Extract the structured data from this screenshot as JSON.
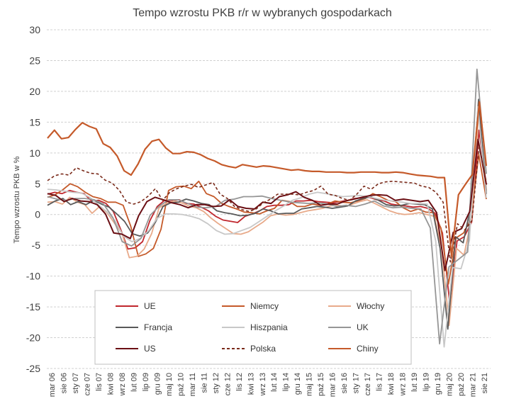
{
  "chart_data": {
    "type": "line",
    "title": "Tempo wzrostu PKB r/r w wybranych gospodarkach",
    "xlabel": "",
    "ylabel": "Tempo wzrostu PKB w %",
    "ylim": [
      -25,
      30
    ],
    "yticks": [
      "30",
      "25",
      "20",
      "15",
      "10",
      "5",
      "0",
      "-5",
      "-10",
      "-15",
      "-20",
      "-25"
    ],
    "grid": true,
    "legend_position": "bottom-center",
    "x_tick_labels": [
      "mar 06",
      "sie 06",
      "sty 07",
      "cze 07",
      "lis 07",
      "kwi 08",
      "wrz 08",
      "lut 09",
      "lip 09",
      "gru 09",
      "maj 10",
      "paź 10",
      "mar 11",
      "sie 11",
      "sty 12",
      "cze 12",
      "lis 12",
      "kwi 13",
      "wrz 13",
      "lut 14",
      "lip 14",
      "gru 14",
      "maj 15",
      "paź 15",
      "mar 16",
      "sie 16",
      "sty 17",
      "cze 17",
      "lis 17",
      "kwi 18",
      "wrz 18",
      "lut 19",
      "lip 19",
      "gru 19",
      "maj 20",
      "paź 20",
      "mar 21",
      "sie 21"
    ],
    "series": [
      {
        "name": "UE",
        "color": "#c0272d",
        "dash": false,
        "width": 1.8,
        "values": [
          3.3,
          3.6,
          3.4,
          3.9,
          3.6,
          3.4,
          2.2,
          2.3,
          1.8,
          0.5,
          -2.4,
          -5.6,
          -5.4,
          -4.4,
          -1.0,
          1.3,
          2.3,
          2.3,
          2.4,
          1.8,
          1.7,
          1.2,
          0.6,
          -0.3,
          -0.9,
          -1.1,
          -1.3,
          -0.3,
          0.1,
          0.6,
          1.3,
          1.5,
          1.5,
          1.6,
          2.2,
          2.2,
          2.3,
          2.1,
          2.0,
          1.9,
          2.1,
          2.3,
          2.6,
          2.7,
          2.8,
          2.4,
          2.2,
          1.7,
          1.5,
          1.4,
          1.2,
          1.3,
          1.0,
          0.2,
          -3.0,
          -14.5,
          -4.3,
          -3.6,
          -1.2,
          13.7,
          4.8
        ]
      },
      {
        "name": "Niemcy",
        "color": "#c55a2a",
        "dash": false,
        "width": 1.8,
        "values": [
          2.8,
          3.2,
          4.0,
          5.0,
          4.5,
          3.6,
          2.9,
          2.6,
          2.0,
          2.0,
          1.5,
          -1.9,
          -6.8,
          -6.4,
          -5.5,
          -2.4,
          3.9,
          4.5,
          4.6,
          4.2,
          5.4,
          3.4,
          2.9,
          1.8,
          1.3,
          0.9,
          0.4,
          0.3,
          0.1,
          0.6,
          1.0,
          2.3,
          2.1,
          1.3,
          1.3,
          1.7,
          1.5,
          1.7,
          2.2,
          2.0,
          1.9,
          2.2,
          2.6,
          3.4,
          2.9,
          2.3,
          2.1,
          1.1,
          0.5,
          0.9,
          0.4,
          0.3,
          -2.2,
          -11.3,
          -3.8,
          -3.0,
          -0.6,
          9.8,
          2.5
        ]
      },
      {
        "name": "Włochy",
        "color": "#e8aa8a",
        "dash": false,
        "width": 1.8,
        "values": [
          2.0,
          2.1,
          1.7,
          2.8,
          2.0,
          1.6,
          0.2,
          1.3,
          0.3,
          -1.4,
          -3.0,
          -7.0,
          -6.8,
          -5.6,
          -3.1,
          1.1,
          1.8,
          2.2,
          1.9,
          1.4,
          1.1,
          0.5,
          -0.6,
          -1.5,
          -2.3,
          -3.1,
          -3.2,
          -2.8,
          -2.0,
          -1.2,
          -0.2,
          0.1,
          -0.1,
          0.0,
          0.3,
          0.6,
          0.8,
          1.0,
          1.4,
          1.5,
          1.3,
          1.7,
          2.1,
          2.4,
          1.8,
          1.2,
          0.6,
          0.2,
          0.0,
          0.1,
          0.3,
          0.0,
          -0.3,
          -5.5,
          -18.0,
          -5.5,
          -6.6,
          -0.7,
          17.0,
          3.9
        ]
      },
      {
        "name": "Francja",
        "color": "#595959",
        "dash": false,
        "width": 1.8,
        "values": [
          1.5,
          2.2,
          2.6,
          1.6,
          2.1,
          1.6,
          2.3,
          1.7,
          1.2,
          0.1,
          -1.1,
          -3.1,
          -3.5,
          -3.0,
          -1.3,
          1.3,
          1.9,
          2.0,
          2.5,
          2.2,
          1.8,
          1.6,
          0.6,
          0.3,
          0.1,
          -0.2,
          -0.1,
          0.2,
          0.9,
          0.6,
          0.1,
          0.2,
          0.2,
          0.9,
          1.1,
          1.3,
          1.2,
          1.0,
          1.2,
          1.4,
          2.2,
          2.6,
          2.9,
          2.3,
          1.6,
          1.4,
          1.5,
          1.8,
          1.7,
          1.6,
          0.9,
          -5.5,
          -18.6,
          -3.6,
          -4.6,
          1.5,
          18.7,
          3.3
        ]
      },
      {
        "name": "Hiszpania",
        "color": "#c8c8c8",
        "dash": false,
        "width": 1.8,
        "values": [
          4.1,
          4.0,
          3.8,
          3.6,
          3.5,
          2.8,
          1.6,
          0.5,
          -1.0,
          -3.5,
          -4.4,
          -3.9,
          -2.6,
          -0.6,
          0.1,
          0.1,
          0.0,
          -0.3,
          -0.7,
          -1.5,
          -2.6,
          -3.2,
          -3.1,
          -2.6,
          -2.1,
          -1.2,
          -0.3,
          0.6,
          1.4,
          2.3,
          2.7,
          3.3,
          3.6,
          3.4,
          3.1,
          2.9,
          3.0,
          3.1,
          2.9,
          2.6,
          2.3,
          2.2,
          2.0,
          1.8,
          1.8,
          1.7,
          -4.3,
          -21.5,
          -8.6,
          -8.8,
          -4.2,
          17.5,
          2.7
        ]
      },
      {
        "name": "UK",
        "color": "#969696",
        "dash": false,
        "width": 1.8,
        "values": [
          2.9,
          2.5,
          2.3,
          2.6,
          2.6,
          2.4,
          1.7,
          -0.5,
          -4.4,
          -5.1,
          -3.9,
          -0.1,
          1.4,
          2.4,
          2.4,
          1.8,
          1.2,
          1.1,
          1.3,
          2.3,
          2.5,
          2.9,
          2.9,
          3.0,
          2.6,
          2.3,
          2.0,
          1.9,
          1.8,
          1.9,
          1.7,
          1.3,
          1.5,
          1.3,
          1.7,
          2.2,
          1.4,
          1.1,
          1.2,
          1.0,
          0.9,
          -2.2,
          -21.0,
          -8.5,
          -7.3,
          -6.1,
          23.6,
          6.6
        ]
      },
      {
        "name": "US",
        "color": "#6b0f14",
        "dash": false,
        "width": 2.0,
        "values": [
          3.4,
          3.1,
          2.1,
          2.6,
          2.2,
          2.1,
          1.6,
          0.1,
          -3.0,
          -3.2,
          -3.9,
          -0.2,
          2.1,
          2.8,
          2.4,
          1.9,
          1.6,
          1.1,
          1.6,
          1.6,
          1.3,
          1.4,
          2.4,
          1.3,
          1.0,
          0.9,
          2.0,
          1.8,
          2.9,
          3.2,
          3.7,
          2.8,
          2.3,
          1.5,
          1.7,
          1.7,
          2.2,
          2.5,
          2.8,
          3.1,
          3.2,
          3.1,
          2.3,
          2.5,
          2.3,
          2.1,
          2.3,
          0.3,
          -9.1,
          -2.9,
          -2.3,
          0.5,
          12.2,
          4.9
        ]
      },
      {
        "name": "Polska",
        "color": "#7a2a1a",
        "dash": true,
        "width": 1.6,
        "values": [
          5.5,
          6.3,
          6.6,
          6.4,
          7.6,
          7.1,
          6.7,
          6.6,
          5.6,
          5.1,
          3.9,
          2.0,
          1.7,
          2.1,
          3.0,
          4.2,
          2.3,
          3.6,
          4.2,
          4.6,
          4.9,
          4.4,
          4.8,
          5.2,
          3.3,
          2.6,
          1.3,
          0.8,
          0.5,
          0.9,
          1.9,
          2.5,
          3.3,
          3.3,
          3.3,
          3.2,
          3.6,
          3.9,
          4.6,
          3.3,
          3.1,
          2.6,
          2.3,
          3.3,
          4.6,
          4.1,
          5.0,
          5.3,
          5.4,
          5.3,
          5.2,
          5.1,
          4.6,
          4.4,
          3.6,
          2.0,
          -7.7,
          -1.5,
          -2.5,
          -1.0,
          11.1,
          5.3
        ]
      },
      {
        "name": "Chiny",
        "color": "#c55a2a",
        "dash": false,
        "width": 2.2,
        "values": [
          12.4,
          13.7,
          12.3,
          12.5,
          13.8,
          14.9,
          14.3,
          13.9,
          11.5,
          10.9,
          9.5,
          7.1,
          6.4,
          8.2,
          10.6,
          11.9,
          12.2,
          10.8,
          9.9,
          9.9,
          10.2,
          10.1,
          9.7,
          9.1,
          8.7,
          8.1,
          7.8,
          7.6,
          8.1,
          7.9,
          7.7,
          7.9,
          7.8,
          7.6,
          7.4,
          7.2,
          7.3,
          7.1,
          7.0,
          7.0,
          6.9,
          6.9,
          6.9,
          6.8,
          6.8,
          6.9,
          6.9,
          6.9,
          6.8,
          6.8,
          6.9,
          6.8,
          6.6,
          6.4,
          6.3,
          6.2,
          6.0,
          6.0,
          -6.8,
          3.2,
          4.9,
          6.5,
          18.3,
          7.9
        ]
      }
    ]
  }
}
